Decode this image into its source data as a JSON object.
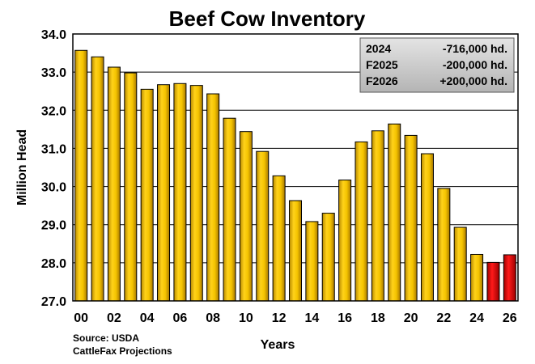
{
  "chart_data": {
    "type": "bar",
    "title": "Beef Cow Inventory",
    "xlabel": "Years",
    "ylabel": "Million Head",
    "ylim": [
      27.0,
      34.0
    ],
    "y_ticks": [
      "27.0",
      "28.0",
      "29.0",
      "30.0",
      "31.0",
      "32.0",
      "33.0",
      "34.0"
    ],
    "x_tick_labels": [
      "00",
      "02",
      "04",
      "06",
      "08",
      "10",
      "12",
      "14",
      "16",
      "18",
      "20",
      "22",
      "24",
      "26"
    ],
    "categories": [
      "00",
      "01",
      "02",
      "03",
      "04",
      "05",
      "06",
      "07",
      "08",
      "09",
      "10",
      "11",
      "12",
      "13",
      "14",
      "15",
      "16",
      "17",
      "18",
      "19",
      "20",
      "21",
      "22",
      "23",
      "24",
      "25",
      "26"
    ],
    "values": [
      33.57,
      33.4,
      33.13,
      32.98,
      32.55,
      32.67,
      32.7,
      32.65,
      32.43,
      31.79,
      31.44,
      30.92,
      30.28,
      29.63,
      29.08,
      29.3,
      30.17,
      31.17,
      31.46,
      31.64,
      31.34,
      30.86,
      29.95,
      28.93,
      28.22,
      28.01,
      28.21
    ],
    "projected": [
      false,
      false,
      false,
      false,
      false,
      false,
      false,
      false,
      false,
      false,
      false,
      false,
      false,
      false,
      false,
      false,
      false,
      false,
      false,
      false,
      false,
      false,
      false,
      false,
      false,
      true,
      true
    ],
    "colors": {
      "actual": "#f2c200",
      "projected": "#e00000",
      "grid": "#000000",
      "legend_bg": "#c8c8c8"
    },
    "legend": {
      "placement": "top-right",
      "rows": [
        {
          "label": "2024",
          "value": "-716,000 hd."
        },
        {
          "label": "F2025",
          "value": "-200,000 hd."
        },
        {
          "label": "F2026",
          "value": "+200,000 hd."
        }
      ]
    },
    "source_lines": [
      "Source: USDA",
      "CattleFax Projections"
    ]
  }
}
